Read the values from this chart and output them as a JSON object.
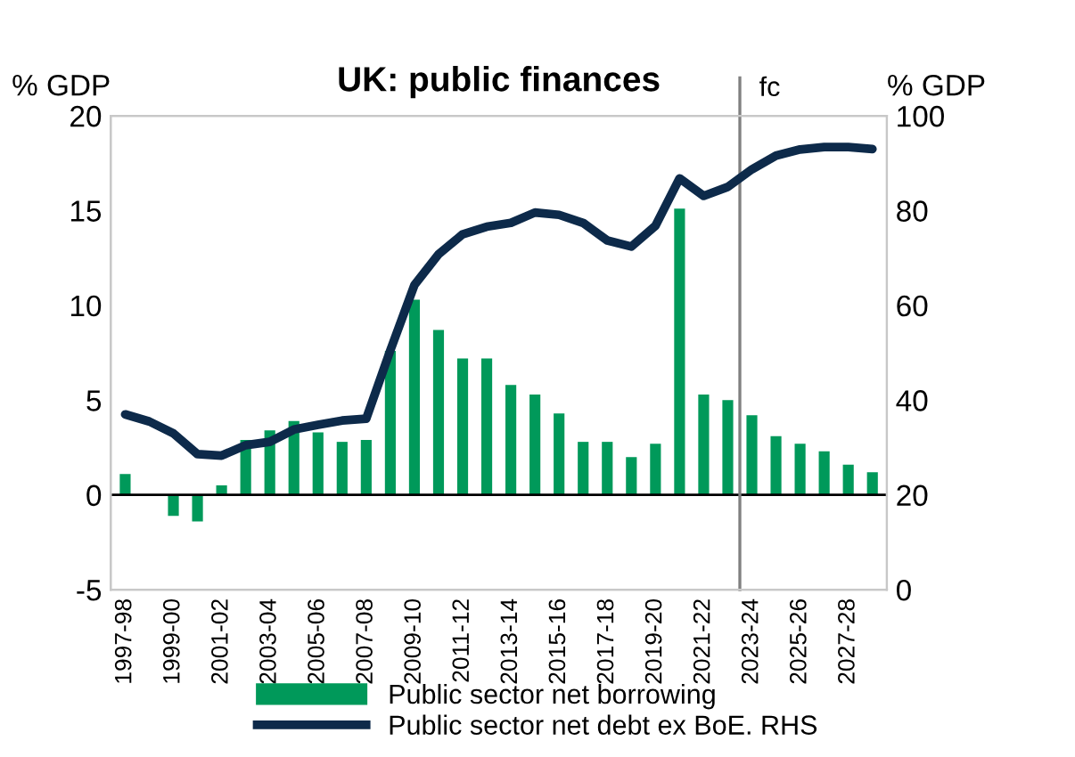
{
  "chart_data": {
    "type": "bar",
    "title": "UK: public finances",
    "ylabel": "% GDP",
    "y2label": "% GDP",
    "categories": [
      "1997-98",
      null,
      "1999-00",
      null,
      "2001-02",
      null,
      "2003-04",
      null,
      "2005-06",
      null,
      "2007-08",
      null,
      "2009-10",
      null,
      "2011-12",
      null,
      "2013-14",
      null,
      "2015-16",
      null,
      "2017-18",
      null,
      "2019-20",
      null,
      "2021-22",
      null,
      "2023-24",
      null,
      "2025-26",
      null,
      "2027-28",
      null
    ],
    "series": [
      {
        "name": "Public sector net borrowing",
        "color": "#00995a",
        "values": [
          1.1,
          0,
          -1.1,
          -1.4,
          0.5,
          2.9,
          3.4,
          3.9,
          3.3,
          2.8,
          2.9,
          7.6,
          10.3,
          8.7,
          7.2,
          7.2,
          5.8,
          5.3,
          4.3,
          2.8,
          2.8,
          2.0,
          2.7,
          15.1,
          5.3,
          5.0,
          4.2,
          3.1,
          2.7,
          2.3,
          1.6,
          1.2
        ]
      },
      {
        "name": "Public sector net debt ex BoE. RHS",
        "type": "line",
        "axis": "y2",
        "color": "#0d2a4a",
        "values": [
          37,
          35.5,
          33,
          28.6,
          28.3,
          30.5,
          31.2,
          33.8,
          34.8,
          35.7,
          36.1,
          50.5,
          64.3,
          70.8,
          75,
          76.6,
          77.4,
          79.6,
          79.1,
          77.4,
          73.7,
          72.4,
          76.8,
          86.8,
          83.1,
          85,
          88.7,
          91.6,
          92.9,
          93.4,
          93.4,
          93
        ]
      }
    ],
    "ylim": [
      -5,
      20
    ],
    "yticks": [
      -5,
      0,
      5,
      10,
      15,
      20
    ],
    "y2lim": [
      0,
      100
    ],
    "y2ticks": [
      0,
      20,
      40,
      60,
      80,
      100
    ],
    "ref_lines": [
      {
        "axis": "x",
        "value": "2023-24",
        "label": "fc",
        "color": "#808080"
      }
    ],
    "grid": false,
    "legend": "bottom"
  }
}
